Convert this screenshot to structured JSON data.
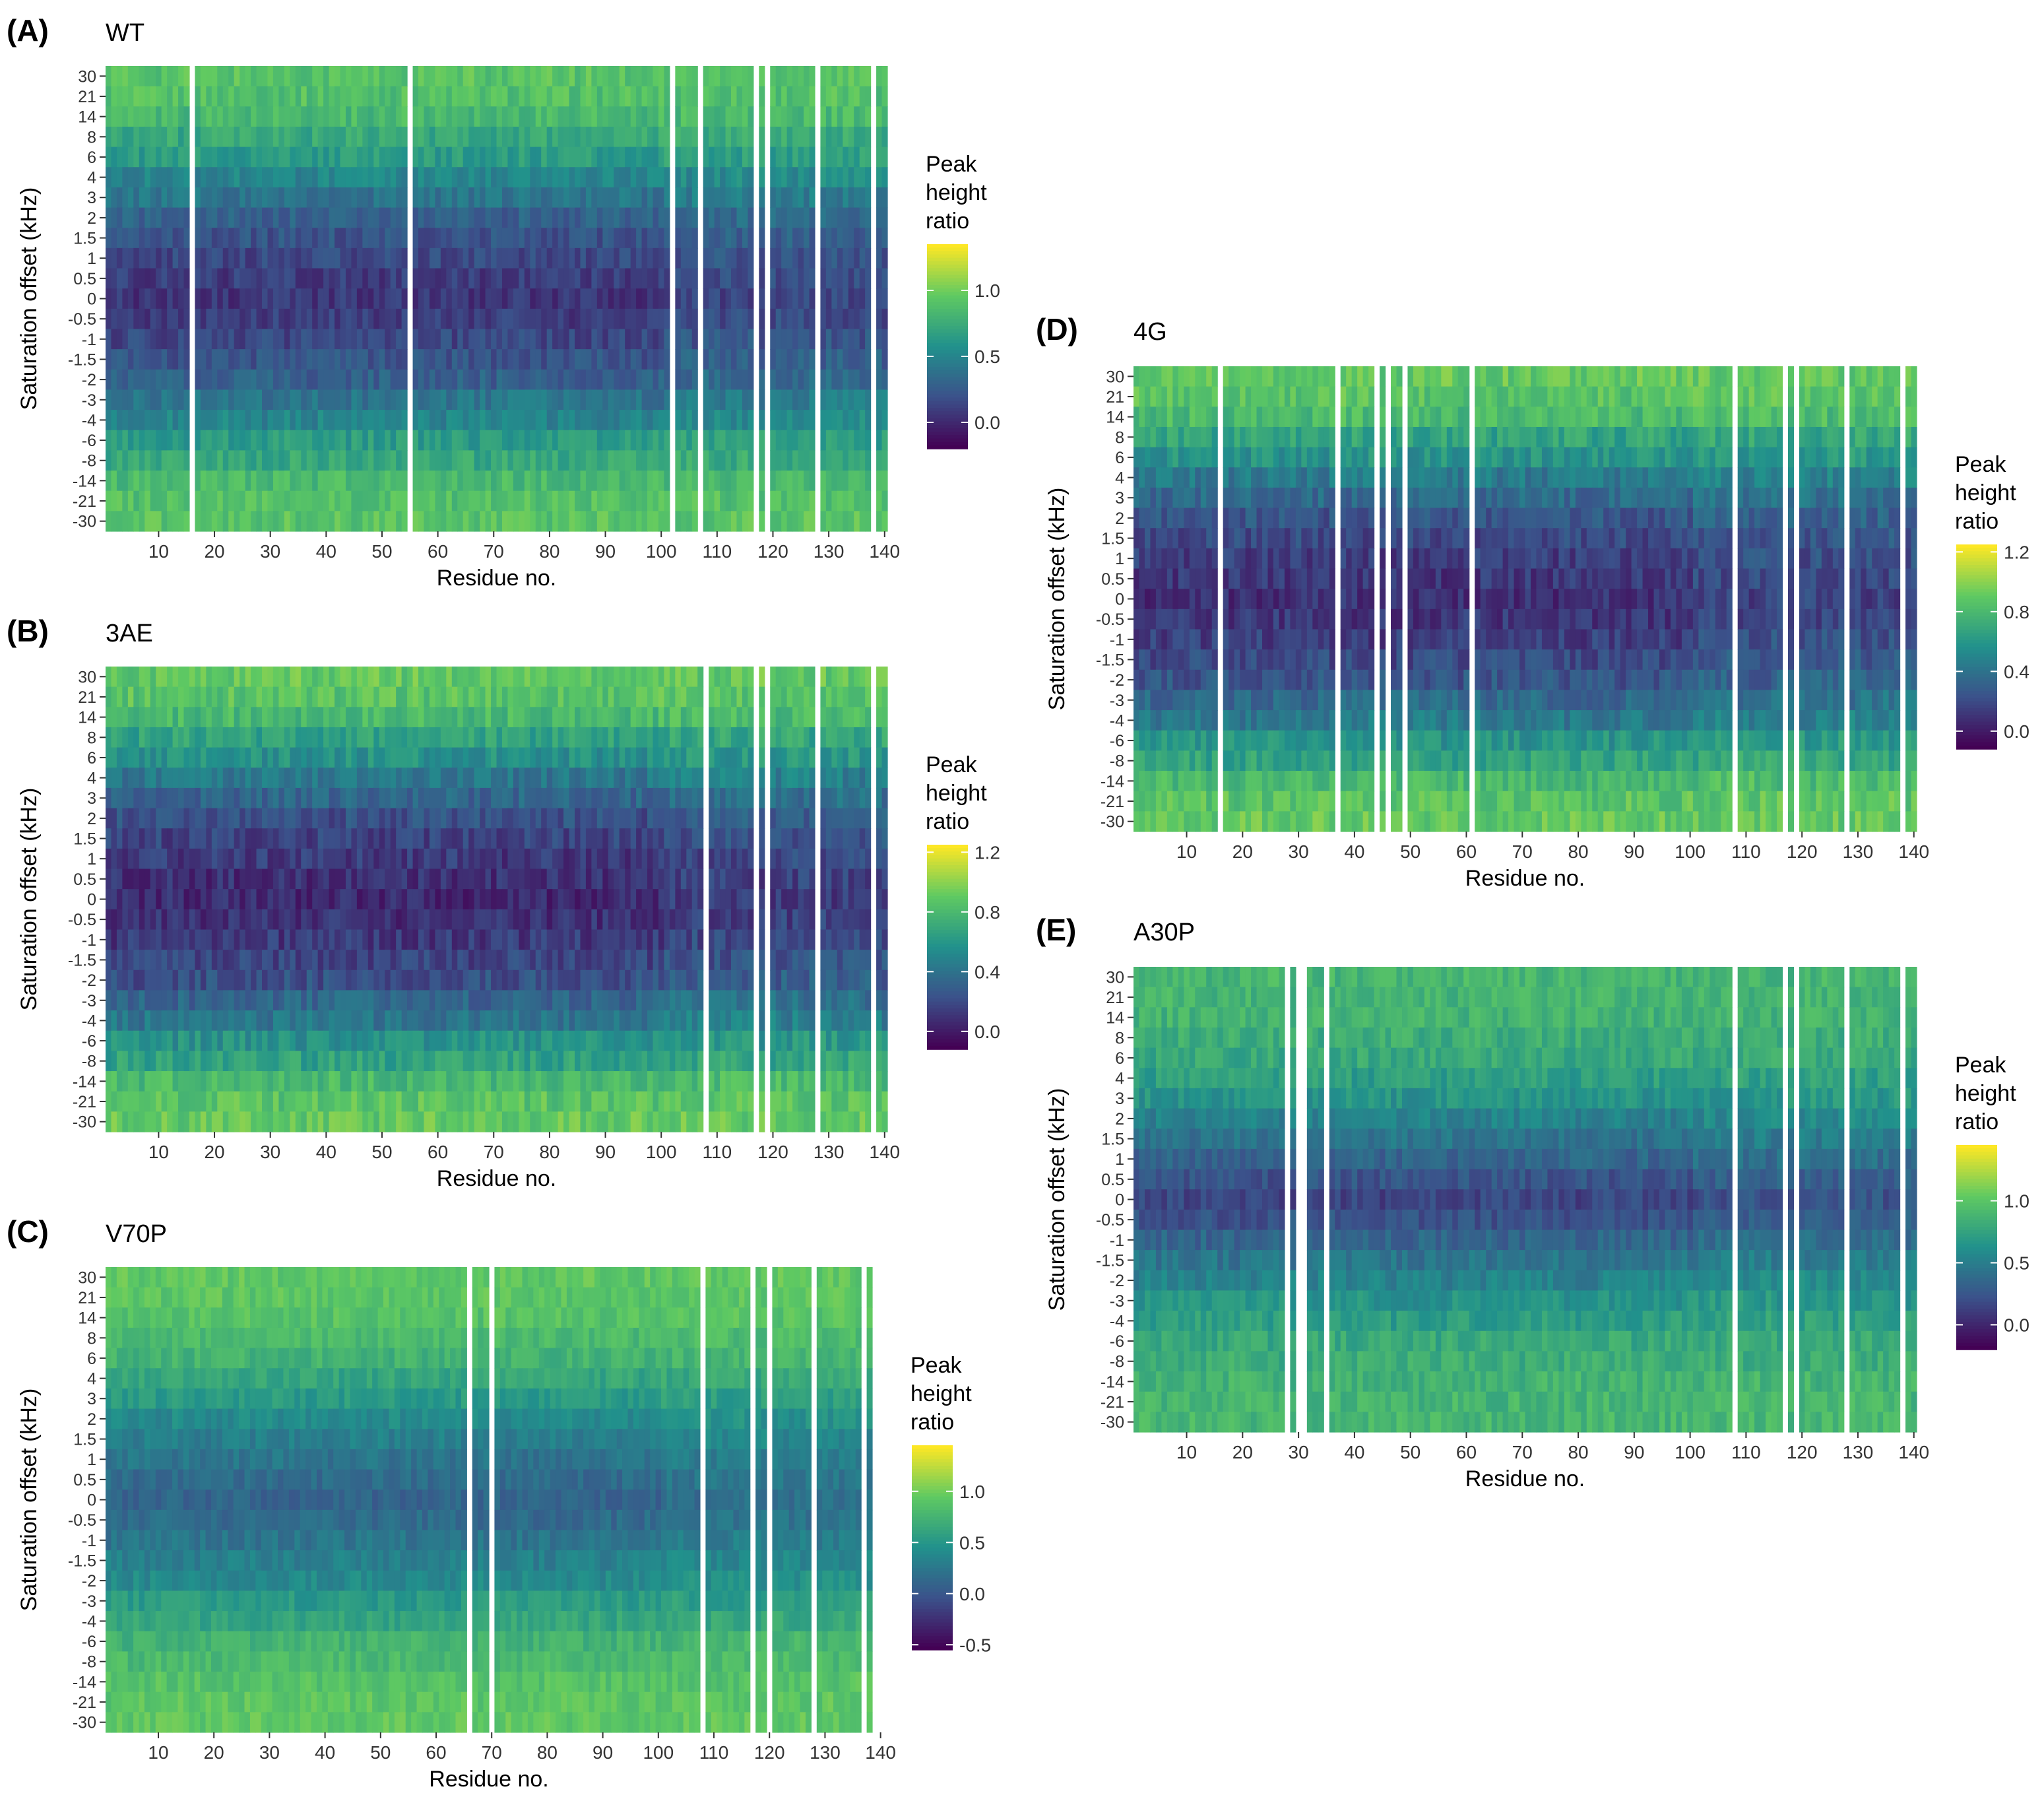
{
  "figure": {
    "colormap": [
      "#440154",
      "#3b528b",
      "#21918c",
      "#5ec962",
      "#fde725"
    ],
    "missing_color": "#ffffff"
  },
  "chart_data": [
    {
      "id": "A",
      "type": "heatmap",
      "panel_label": "(A)",
      "title": "WT",
      "xlabel": "Residue no.",
      "ylabel": "Saturation offset (kHz)",
      "x_range": [
        1,
        140
      ],
      "x_ticks": [
        "10",
        "20",
        "30",
        "40",
        "50",
        "60",
        "70",
        "80",
        "90",
        "100",
        "110",
        "120",
        "130",
        "140"
      ],
      "y_categories": [
        "30",
        "21",
        "14",
        "8",
        "6",
        "4",
        "3",
        "2",
        "1.5",
        "1",
        "0.5",
        "0",
        "-0.5",
        "-1",
        "-1.5",
        "-2",
        "-3",
        "-4",
        "-6",
        "-8",
        "-14",
        "-21",
        "-30"
      ],
      "missing_residues": [
        16,
        55,
        102,
        107,
        117,
        119,
        128,
        138
      ],
      "colorbar": {
        "title": [
          "Peak",
          "height",
          "ratio"
        ],
        "ticks": [
          "0.0",
          "0.5",
          "1.0"
        ],
        "min": -0.2,
        "max": 1.35
      },
      "profile": {
        "center_min": 0.05,
        "edge_max": 0.95,
        "width_kHz": 4.0
      }
    },
    {
      "id": "B",
      "type": "heatmap",
      "panel_label": "(B)",
      "title": "3AE",
      "xlabel": "Residue no.",
      "ylabel": "Saturation offset (kHz)",
      "x_range": [
        1,
        140
      ],
      "x_ticks": [
        "10",
        "20",
        "30",
        "40",
        "50",
        "60",
        "70",
        "80",
        "90",
        "100",
        "110",
        "120",
        "130",
        "140"
      ],
      "y_categories": [
        "30",
        "21",
        "14",
        "8",
        "6",
        "4",
        "3",
        "2",
        "1.5",
        "1",
        "0.5",
        "0",
        "-0.5",
        "-1",
        "-1.5",
        "-2",
        "-3",
        "-4",
        "-6",
        "-8",
        "-14",
        "-21",
        "-30"
      ],
      "missing_residues": [
        108,
        117,
        119,
        128,
        138
      ],
      "colorbar": {
        "title": [
          "Peak",
          "height",
          "ratio"
        ],
        "ticks": [
          "0.0",
          "0.4",
          "0.8",
          "1.2"
        ],
        "min": -0.12,
        "max": 1.25
      },
      "profile": {
        "center_min": 0.05,
        "edge_max": 0.95,
        "width_kHz": 5.0
      }
    },
    {
      "id": "C",
      "type": "heatmap",
      "panel_label": "(C)",
      "title": "V70P",
      "xlabel": "Residue no.",
      "ylabel": "Saturation offset (kHz)",
      "x_range": [
        1,
        138
      ],
      "x_ticks": [
        "10",
        "20",
        "30",
        "40",
        "50",
        "60",
        "70",
        "80",
        "90",
        "100",
        "110",
        "120",
        "130",
        "140"
      ],
      "y_categories": [
        "30",
        "21",
        "14",
        "8",
        "6",
        "4",
        "3",
        "2",
        "1.5",
        "1",
        "0.5",
        "0",
        "-0.5",
        "-1",
        "-1.5",
        "-2",
        "-3",
        "-4",
        "-6",
        "-8",
        "-14",
        "-21",
        "-30"
      ],
      "missing_residues": [
        66,
        70,
        108,
        117,
        120,
        128,
        137
      ],
      "colorbar": {
        "title": [
          "Peak",
          "height",
          "ratio"
        ],
        "ticks": [
          "-0.5",
          "0.0",
          "0.5",
          "1.0"
        ],
        "min": -0.55,
        "max": 1.45
      },
      "profile": {
        "center_min": 0.1,
        "edge_max": 0.95,
        "width_kHz": 3.0
      }
    },
    {
      "id": "D",
      "type": "heatmap",
      "panel_label": "(D)",
      "title": "4G",
      "xlabel": "Residue no.",
      "ylabel": "Saturation offset (kHz)",
      "x_range": [
        1,
        140
      ],
      "x_ticks": [
        "10",
        "20",
        "30",
        "40",
        "50",
        "60",
        "70",
        "80",
        "90",
        "100",
        "110",
        "120",
        "130",
        "140"
      ],
      "y_categories": [
        "30",
        "21",
        "14",
        "8",
        "6",
        "4",
        "3",
        "2",
        "1.5",
        "1",
        "0.5",
        "0",
        "-0.5",
        "-1",
        "-1.5",
        "-2",
        "-3",
        "-4",
        "-6",
        "-8",
        "-14",
        "-21",
        "-30"
      ],
      "missing_residues": [
        16,
        37,
        44,
        46,
        49,
        61,
        108,
        117,
        119,
        128,
        138
      ],
      "colorbar": {
        "title": [
          "Peak",
          "height",
          "ratio"
        ],
        "ticks": [
          "0.0",
          "0.4",
          "0.8",
          "1.2"
        ],
        "min": -0.12,
        "max": 1.25
      },
      "profile": {
        "center_min": 0.08,
        "edge_max": 0.95,
        "width_kHz": 5.0
      }
    },
    {
      "id": "E",
      "type": "heatmap",
      "panel_label": "(E)",
      "title": "A30P",
      "xlabel": "Residue no.",
      "ylabel": "Saturation offset (kHz)",
      "x_range": [
        1,
        140
      ],
      "x_ticks": [
        "10",
        "20",
        "30",
        "40",
        "50",
        "60",
        "70",
        "80",
        "90",
        "100",
        "110",
        "120",
        "130",
        "140"
      ],
      "y_categories": [
        "30",
        "21",
        "14",
        "8",
        "6",
        "4",
        "3",
        "2",
        "1.5",
        "1",
        "0.5",
        "0",
        "-0.5",
        "-1",
        "-1.5",
        "-2",
        "-3",
        "-4",
        "-6",
        "-8",
        "-14",
        "-21",
        "-30"
      ],
      "missing_residues": [
        28,
        30,
        31,
        35,
        108,
        117,
        119,
        128,
        138
      ],
      "colorbar": {
        "title": [
          "Peak",
          "height",
          "ratio"
        ],
        "ticks": [
          "0.0",
          "0.5",
          "1.0"
        ],
        "min": -0.2,
        "max": 1.45
      },
      "profile": {
        "center_min": 0.15,
        "edge_max": 0.9,
        "width_kHz": 2.0
      }
    }
  ]
}
